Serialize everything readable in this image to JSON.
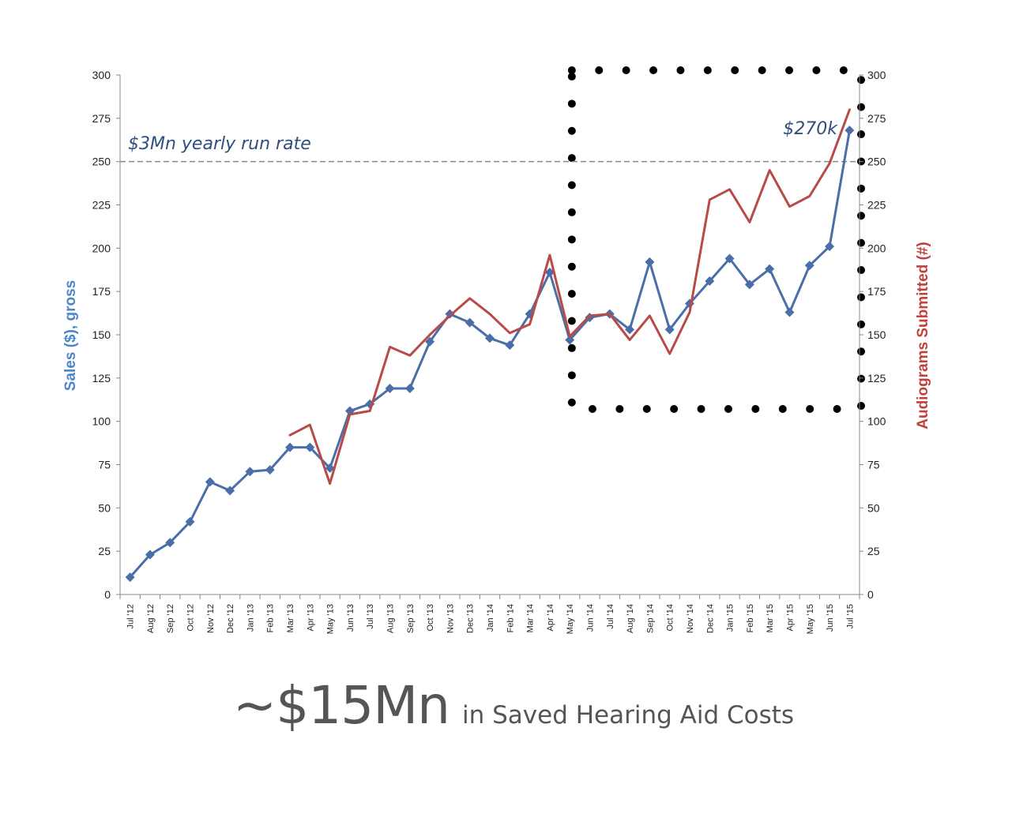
{
  "chart_data": {
    "type": "line",
    "categories": [
      "Jul '12",
      "Aug '12",
      "Sep '12",
      "Oct '12",
      "Nov '12",
      "Dec '12",
      "Jan '13",
      "Feb '13",
      "Mar '13",
      "Apr '13",
      "May '13",
      "Jun '13",
      "Jul '13",
      "Aug '13",
      "Sep '13",
      "Oct '13",
      "Nov '13",
      "Dec '13",
      "Jan '14",
      "Feb '14",
      "Mar '14",
      "Apr '14",
      "May '14",
      "Jun '14",
      "Jul '14",
      "Aug '14",
      "Sep '14",
      "Oct '14",
      "Nov '14",
      "Dec '14",
      "Jan '15",
      "Feb '15",
      "Mar '15",
      "Apr '15",
      "May '15",
      "Jun '15",
      "Jul '15"
    ],
    "series": [
      {
        "name": "Sales ($), gross",
        "axis": "left",
        "color": "#4a6fa8",
        "marker": "diamond",
        "values": [
          10,
          23,
          30,
          42,
          65,
          60,
          71,
          72,
          85,
          85,
          73,
          106,
          110,
          119,
          119,
          146,
          162,
          157,
          148,
          144,
          162,
          186,
          147,
          160,
          162,
          153,
          192,
          153,
          168,
          181,
          194,
          179,
          188,
          163,
          190,
          201,
          268
        ]
      },
      {
        "name": "Audiograms Submitted (#)",
        "axis": "right",
        "color": "#b84a47",
        "values": [
          null,
          null,
          null,
          null,
          null,
          null,
          null,
          null,
          92,
          98,
          64,
          104,
          106,
          143,
          138,
          150,
          161,
          171,
          162,
          151,
          156,
          196,
          149,
          161,
          162,
          147,
          161,
          139,
          163,
          228,
          234,
          215,
          245,
          224,
          230,
          249,
          280
        ]
      }
    ],
    "ylabel": "Sales ($), gross",
    "ylabel_right": "Audiograms Submitted (#)",
    "ylim": [
      0,
      300
    ],
    "ylim_right": [
      0,
      300
    ],
    "yticks": [
      0,
      25,
      50,
      75,
      100,
      125,
      150,
      175,
      200,
      225,
      250,
      275,
      300
    ],
    "reference_line": {
      "value": 250,
      "label": "$3Mn yearly run rate"
    },
    "annotation": {
      "text": "$270k"
    },
    "highlight_box": {
      "from": "Jun '14",
      "to": "Jul '15"
    },
    "grid": false
  },
  "colors": {
    "sales_axis_title": "#4a86c8",
    "audiograms_axis_title": "#c0413d",
    "annotation_text": "#2f4f7f",
    "axis": "#888888",
    "reference_line": "#888888",
    "footer": "#555555"
  },
  "footer": {
    "headline": "~$15Mn",
    "subtext": "in Saved Hearing Aid Costs"
  }
}
